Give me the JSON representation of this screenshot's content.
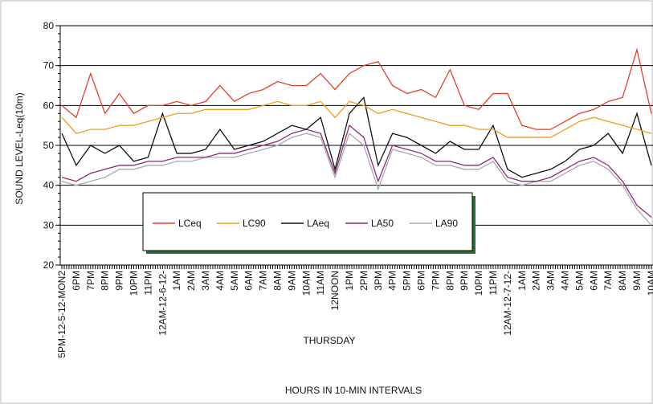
{
  "chart_data": {
    "type": "line",
    "y_label": "SOUND LEVEL-Leq(10m)",
    "x_label": "HOURS IN 10-MIN INTERVALS",
    "annotations": [
      "THURSDAY"
    ],
    "categories": [
      "5PM-12-5-12-MON2",
      "6PM",
      "7PM",
      "8PM",
      "9PM",
      "10PM",
      "11PM",
      "12AM-12-6-12-",
      "1AM",
      "2AM",
      "3AM",
      "4AM",
      "5AM",
      "6AM",
      "7AM",
      "8AM",
      "9AM",
      "10AM",
      "11AM",
      "12NOON",
      "1PM",
      "2PM",
      "3PM",
      "4PM",
      "5PM",
      "6PM",
      "7PM",
      "8PM",
      "9PM",
      "10PM",
      "11PM",
      "12AM-12-7-12-",
      "1AM",
      "2AM",
      "3AM",
      "4AM",
      "5AM",
      "6AM",
      "7AM",
      "8AM",
      "9AM",
      "10AM"
    ],
    "series": [
      {
        "name": "LCeq",
        "color": "#e0402a",
        "values": [
          60,
          57,
          68,
          58,
          63,
          58,
          60,
          60,
          61,
          60,
          61,
          65,
          61,
          63,
          64,
          66,
          65,
          65,
          68,
          64,
          68,
          70,
          71,
          65,
          63,
          64,
          62,
          69,
          60,
          59,
          63,
          63,
          55,
          54,
          54,
          56,
          58,
          59,
          61,
          62,
          74,
          58
        ]
      },
      {
        "name": "LC90",
        "color": "#e8a020",
        "values": [
          57,
          53,
          54,
          54,
          55,
          55,
          56,
          57,
          58,
          58,
          59,
          59,
          59,
          59,
          60,
          61,
          60,
          60,
          61,
          57,
          61,
          60,
          58,
          59,
          58,
          57,
          56,
          55,
          55,
          54,
          54,
          52,
          52,
          52,
          52,
          54,
          56,
          57,
          56,
          55,
          54,
          53
        ]
      },
      {
        "name": "LAeq",
        "color": "#111111",
        "values": [
          53,
          45,
          50,
          48,
          50,
          46,
          47,
          58,
          48,
          48,
          49,
          54,
          49,
          50,
          51,
          53,
          55,
          54,
          57,
          44,
          58,
          62,
          45,
          53,
          52,
          50,
          48,
          51,
          49,
          49,
          55,
          44,
          42,
          43,
          44,
          46,
          49,
          50,
          53,
          48,
          58,
          45
        ]
      },
      {
        "name": "LA50",
        "color": "#8a2a7a",
        "values": [
          42,
          41,
          43,
          44,
          45,
          45,
          46,
          46,
          47,
          47,
          47,
          48,
          48,
          49,
          50,
          51,
          53,
          54,
          53,
          43,
          55,
          52,
          41,
          50,
          49,
          48,
          46,
          46,
          45,
          45,
          47,
          42,
          41,
          41,
          42,
          44,
          46,
          47,
          45,
          41,
          35,
          32
        ]
      },
      {
        "name": "LA90",
        "color": "#aaaaaa",
        "values": [
          41,
          40,
          41,
          42,
          44,
          44,
          45,
          45,
          46,
          46,
          47,
          47,
          47,
          48,
          49,
          50,
          52,
          53,
          52,
          42,
          53,
          50,
          39,
          49,
          48,
          47,
          45,
          45,
          44,
          44,
          46,
          41,
          40,
          41,
          41,
          43,
          45,
          46,
          44,
          40,
          34,
          30
        ]
      }
    ],
    "ylim": [
      20,
      80
    ],
    "yticks": [
      20,
      30,
      40,
      50,
      60,
      70,
      80
    ],
    "grid": true,
    "legend_position": "lower center"
  }
}
